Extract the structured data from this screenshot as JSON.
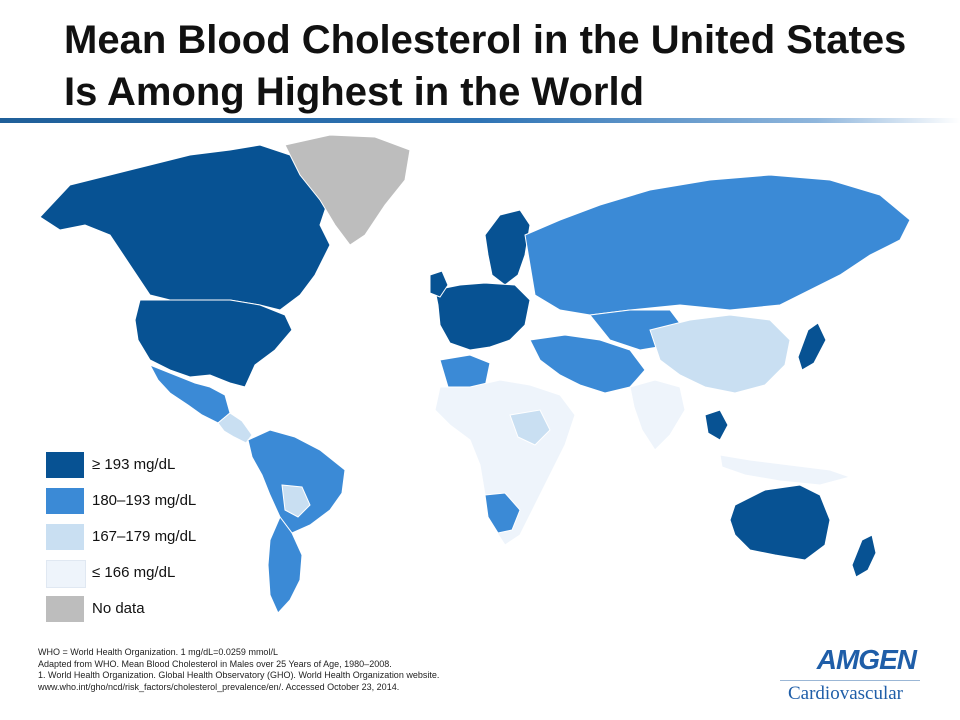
{
  "title": "Mean Blood Cholesterol in the United States Is Among Highest in the World",
  "colors": {
    "band_high": "#075293",
    "band_mid": "#3b8ad6",
    "band_low": "#c9dff2",
    "band_lowest": "#eef4fb",
    "no_data": "#bdbdbd"
  },
  "legend": [
    {
      "label": "≥ 193 mg/dL",
      "color": "#075293"
    },
    {
      "label": "180–193 mg/dL",
      "color": "#3b8ad6"
    },
    {
      "label": "167–179 mg/dL",
      "color": "#c9dff2"
    },
    {
      "label": "≤ 166 mg/dL",
      "color": "#eef4fb"
    },
    {
      "label": "No data",
      "color": "#bdbdbd"
    }
  ],
  "notes": [
    "WHO = World Health Organization. 1 mg/dL=0.0259 mmol/L",
    "Adapted from WHO. Mean Blood Cholesterol in Males over 25 Years of Age, 1980–2008.",
    "1. World Health Organization. Global Health Observatory (GHO). World Health Organization website.",
    "www.who.int/gho/ncd/risk_factors/cholesterol_prevalence/en/. Accessed October 23, 2014."
  ],
  "brand": {
    "logo": "AMGEN",
    "subtitle": "Cardiovascular"
  }
}
